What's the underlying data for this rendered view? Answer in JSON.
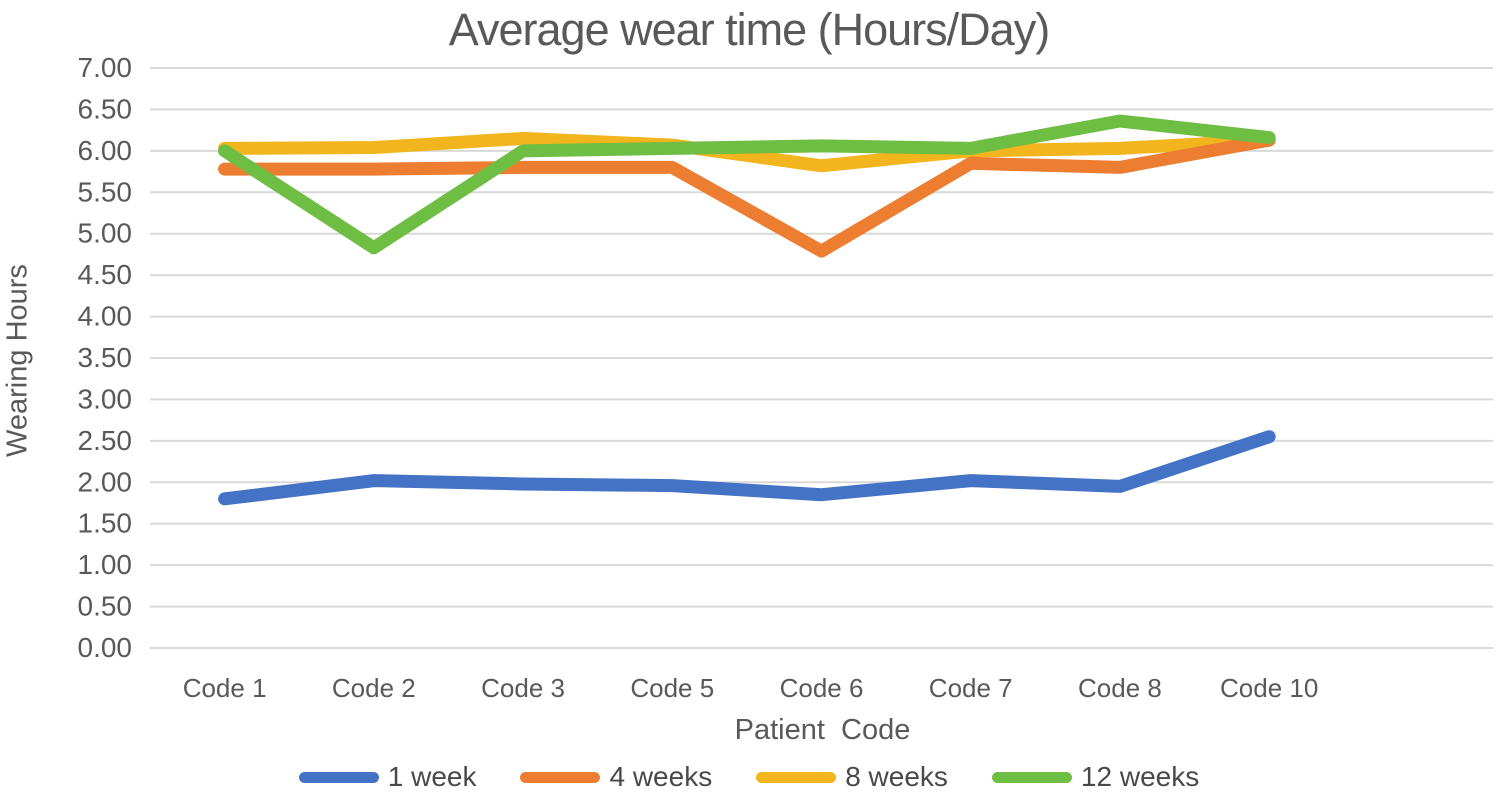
{
  "title": "Average wear time (Hours/Day)",
  "axes": {
    "y_title": "Wearing Hours",
    "x_title": "Patient  Code"
  },
  "legend": {
    "items": [
      {
        "label": "1 week",
        "color": "#4472C4"
      },
      {
        "label": "4 weeks",
        "color": "#ED7D31"
      },
      {
        "label": "8 weeks",
        "color": "#F2B51D"
      },
      {
        "label": "12 weeks",
        "color": "#6FBE44"
      }
    ]
  },
  "chart_data": {
    "type": "line",
    "title": "Average wear time (Hours/Day)",
    "xlabel": "Patient  Code",
    "ylabel": "Wearing Hours",
    "categories": [
      "Code 1",
      "Code 2",
      "Code 3",
      "Code 5",
      "Code 6",
      "Code 7",
      "Code 8",
      "Code 10"
    ],
    "series": [
      {
        "name": "1 week",
        "color": "#4472C4",
        "values": [
          1.8,
          2.02,
          1.98,
          1.96,
          1.85,
          2.02,
          1.95,
          2.55
        ]
      },
      {
        "name": "4 weeks",
        "color": "#ED7D31",
        "values": [
          5.78,
          5.78,
          5.8,
          5.8,
          4.79,
          5.85,
          5.8,
          6.13
        ]
      },
      {
        "name": "8 weeks",
        "color": "#F2B51D",
        "values": [
          6.03,
          6.04,
          6.15,
          6.07,
          5.82,
          6.0,
          6.03,
          6.13
        ]
      },
      {
        "name": "12 weeks",
        "color": "#6FBE44",
        "values": [
          6.0,
          4.83,
          6.0,
          6.03,
          6.06,
          6.03,
          6.36,
          6.16
        ]
      }
    ],
    "ylim": [
      0,
      7
    ],
    "ytick_step": 0.5,
    "y_tick_labels": [
      "0.00",
      "0.50",
      "1.00",
      "1.50",
      "2.00",
      "2.50",
      "3.00",
      "3.50",
      "4.00",
      "4.50",
      "5.00",
      "5.50",
      "6.00",
      "6.50",
      "7.00"
    ],
    "grid": "horizontal",
    "gridline_color": "#D9D9D9",
    "text_color": "#595959",
    "legend_position": "bottom"
  }
}
